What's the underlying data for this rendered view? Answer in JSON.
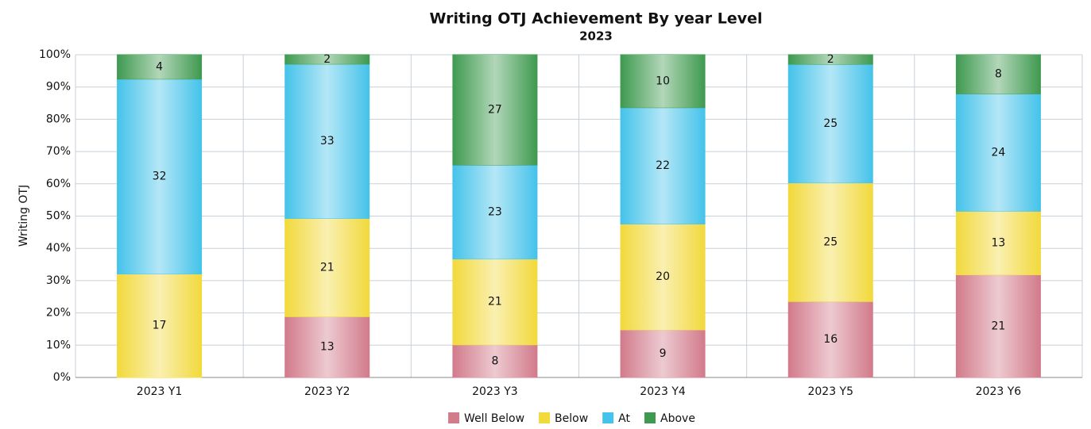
{
  "chart_data": {
    "type": "bar",
    "stacking": "percent",
    "title": "Writing OTJ Achievement By year Level",
    "subtitle": "2023",
    "y_label": "Writing OTJ",
    "categories": [
      "2023 Y1",
      "2023 Y2",
      "2023 Y3",
      "2023 Y4",
      "2023 Y5",
      "2023 Y6"
    ],
    "series": [
      {
        "name": "Well Below",
        "color": "#d27b8b",
        "values": [
          0,
          13,
          8,
          9,
          16,
          21
        ]
      },
      {
        "name": "Below",
        "color": "#f2d93c",
        "values": [
          17,
          21,
          21,
          20,
          25,
          13
        ]
      },
      {
        "name": "At",
        "color": "#45c3ea",
        "values": [
          32,
          33,
          23,
          22,
          25,
          24
        ]
      },
      {
        "name": "Above",
        "color": "#3f9a50",
        "values": [
          4,
          2,
          27,
          10,
          2,
          8
        ]
      }
    ],
    "ylim": [
      0,
      100
    ],
    "yticks": [
      {
        "value": 0,
        "label": "0%"
      },
      {
        "value": 10,
        "label": "10%"
      },
      {
        "value": 20,
        "label": "20%"
      },
      {
        "value": 30,
        "label": "30%"
      },
      {
        "value": 40,
        "label": "40%"
      },
      {
        "value": 50,
        "label": "50%"
      },
      {
        "value": 60,
        "label": "60%"
      },
      {
        "value": 70,
        "label": "70%"
      },
      {
        "value": 80,
        "label": "80%"
      },
      {
        "value": 90,
        "label": "90%"
      },
      {
        "value": 100,
        "label": "100%"
      }
    ],
    "grid": true,
    "legend": "bottom"
  }
}
